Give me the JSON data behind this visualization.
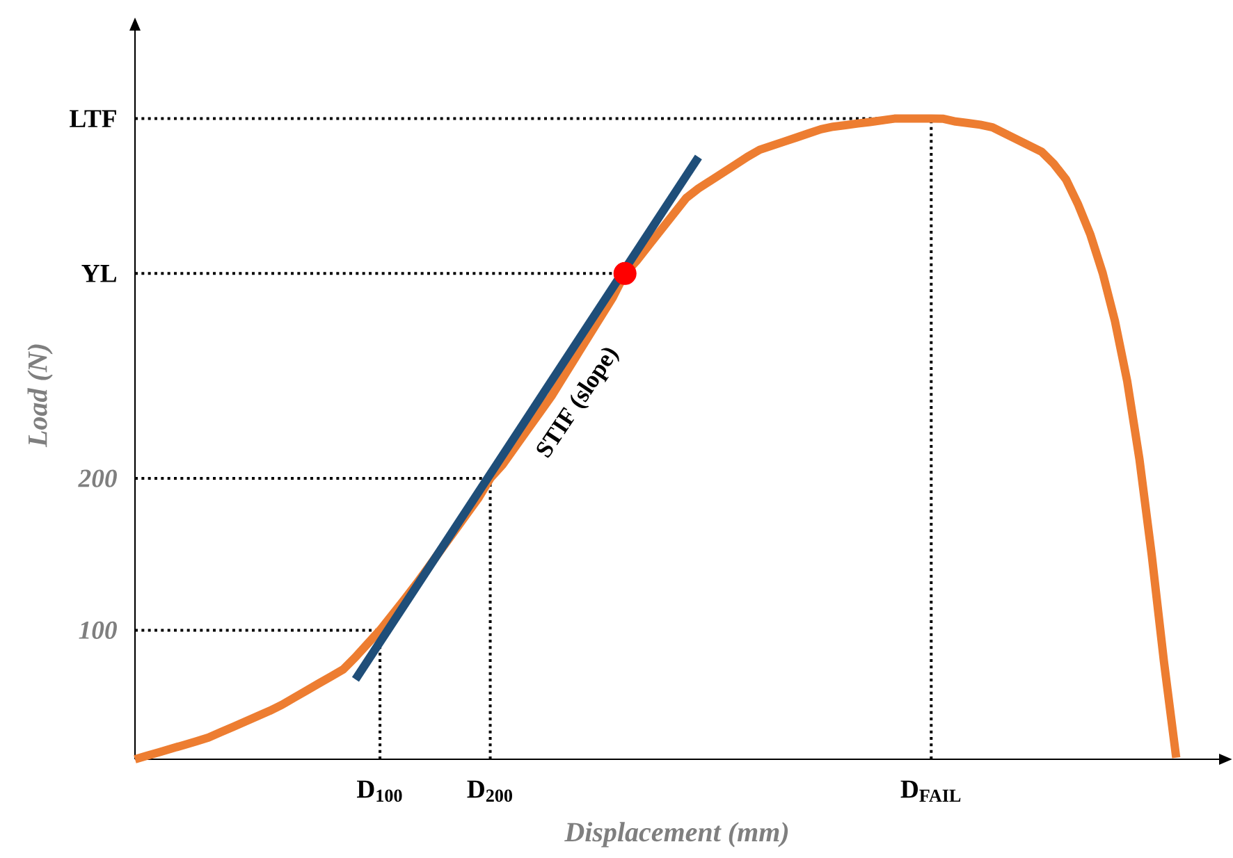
{
  "chart_data": {
    "type": "line",
    "xlabel": "Displacement (mm)",
    "ylabel": "Load (N)",
    "categories": [
      null,
      null,
      null,
      null,
      null,
      null,
      null,
      null,
      null,
      null,
      null,
      null,
      null,
      null,
      null,
      null,
      null,
      null,
      null,
      null,
      "D$_{100}$",
      null,
      null,
      null,
      null,
      null,
      null,
      null,
      null,
      "D$_{200}$",
      null,
      null,
      null,
      null,
      null,
      null,
      null,
      null,
      null,
      null,
      null,
      null,
      null,
      null,
      null,
      null,
      null,
      null,
      null,
      null,
      null,
      null,
      null,
      null,
      null,
      null,
      null,
      null,
      null,
      null,
      null,
      null,
      null,
      null,
      null,
      "D$_{FAIL}$",
      null,
      null,
      null,
      null,
      null,
      null,
      null,
      null,
      null,
      null,
      null,
      null,
      null,
      null,
      null,
      null,
      null,
      null,
      null,
      null,
      null,
      null,
      null
    ],
    "ylim": [
      15,
      495
    ],
    "yticks": [
      100,
      200,
      {
        "value": 335,
        "label": "YL"
      },
      {
        "value": 437,
        "label": "LTF"
      }
    ],
    "grid": false,
    "ref_lines": [
      {
        "axis": "y",
        "value": 100,
        "color": "#000000",
        "line_style": "dotted"
      },
      {
        "axis": "y",
        "value": 200,
        "color": "#000000",
        "line_style": "dotted"
      },
      {
        "axis": "y",
        "value": 335,
        "color": "#000000",
        "line_style": "dotted"
      },
      {
        "axis": "y",
        "value": 437,
        "color": "#000000",
        "line_style": "dotted"
      },
      {
        "axis": "x",
        "value": "D$_{100}$",
        "color": "#000000",
        "line_style": "dotted"
      },
      {
        "axis": "x",
        "value": "D$_{200}$",
        "color": "#000000",
        "line_style": "dotted"
      },
      {
        "axis": "x",
        "value": "D$_{FAIL}$",
        "color": "#000000",
        "line_style": "dotted"
      }
    ],
    "series": [
      {
        "color": "#ed7d31",
        "line_style": "solid",
        "marker": "none",
        "values": [
          15,
          17.4,
          19.7,
          22.1,
          24.4,
          26.8,
          29.3,
          32.8,
          36.3,
          39.8,
          43.4,
          46.9,
          50.9,
          55.6,
          60.2,
          64.9,
          69.5,
          74.2,
          82.3,
          91.2,
          100,
          110.2,
          120.4,
          130.9,
          142,
          153.2,
          164.3,
          175.5,
          186.6,
          200,
          209,
          220.3,
          231.6,
          242.9,
          254.2,
          267.2,
          280.2,
          293.2,
          306.1,
          319.1,
          335,
          343.8,
          354.1,
          364.3,
          374.5,
          384.7,
          391,
          396.2,
          401.4,
          406.6,
          411.9,
          416.5,
          419.2,
          421.9,
          424.6,
          427.3,
          430,
          431.7,
          432.7,
          433.8,
          434.8,
          435.9,
          437,
          437,
          437,
          437,
          436.9,
          435.1,
          434.1,
          433,
          431.3,
          427.3,
          423.3,
          419.3,
          415.3,
          407.3,
          397,
          380.3,
          360.4,
          335.2,
          303.6,
          264,
          212.5,
          149.6,
          79.2,
          16,
          null,
          null,
          null
        ]
      },
      {
        "color": "#1f4e79",
        "line_style": "solid",
        "marker": "none",
        "values": [
          null,
          null,
          null,
          null,
          null,
          null,
          null,
          null,
          null,
          null,
          null,
          null,
          null,
          null,
          null,
          null,
          null,
          null,
          67.6,
          null,
          null,
          null,
          null,
          null,
          null,
          null,
          null,
          null,
          null,
          null,
          null,
          null,
          null,
          null,
          null,
          null,
          null,
          null,
          null,
          null,
          null,
          null,
          null,
          null,
          null,
          null,
          411.7,
          null,
          null,
          null,
          null,
          null,
          null,
          null,
          null,
          null,
          null,
          null,
          null,
          null,
          null,
          null,
          null,
          null,
          null,
          null,
          null,
          null,
          null,
          null,
          null,
          null,
          null,
          null,
          null,
          null,
          null,
          null,
          null,
          null,
          null,
          null,
          null,
          null,
          null,
          null,
          null,
          null,
          null
        ]
      },
      {
        "type": "scatter",
        "color": "#ff0000",
        "marker": "circle",
        "values": [
          null,
          null,
          null,
          null,
          null,
          null,
          null,
          null,
          null,
          null,
          null,
          null,
          null,
          null,
          null,
          null,
          null,
          null,
          null,
          null,
          null,
          null,
          null,
          null,
          null,
          null,
          null,
          null,
          null,
          null,
          null,
          null,
          null,
          null,
          null,
          null,
          null,
          null,
          null,
          null,
          335,
          null,
          null,
          null,
          null,
          null,
          null,
          null,
          null,
          null,
          null,
          null,
          null,
          null,
          null,
          null,
          null,
          null,
          null,
          null,
          null,
          null,
          null,
          null,
          null,
          null,
          null,
          null,
          null,
          null,
          null,
          null,
          null,
          null,
          null,
          null,
          null,
          null,
          null,
          null,
          null,
          null,
          null,
          null,
          null,
          null,
          null,
          null,
          null
        ]
      }
    ],
    "annotations": [
      "STIF (slope)"
    ]
  }
}
